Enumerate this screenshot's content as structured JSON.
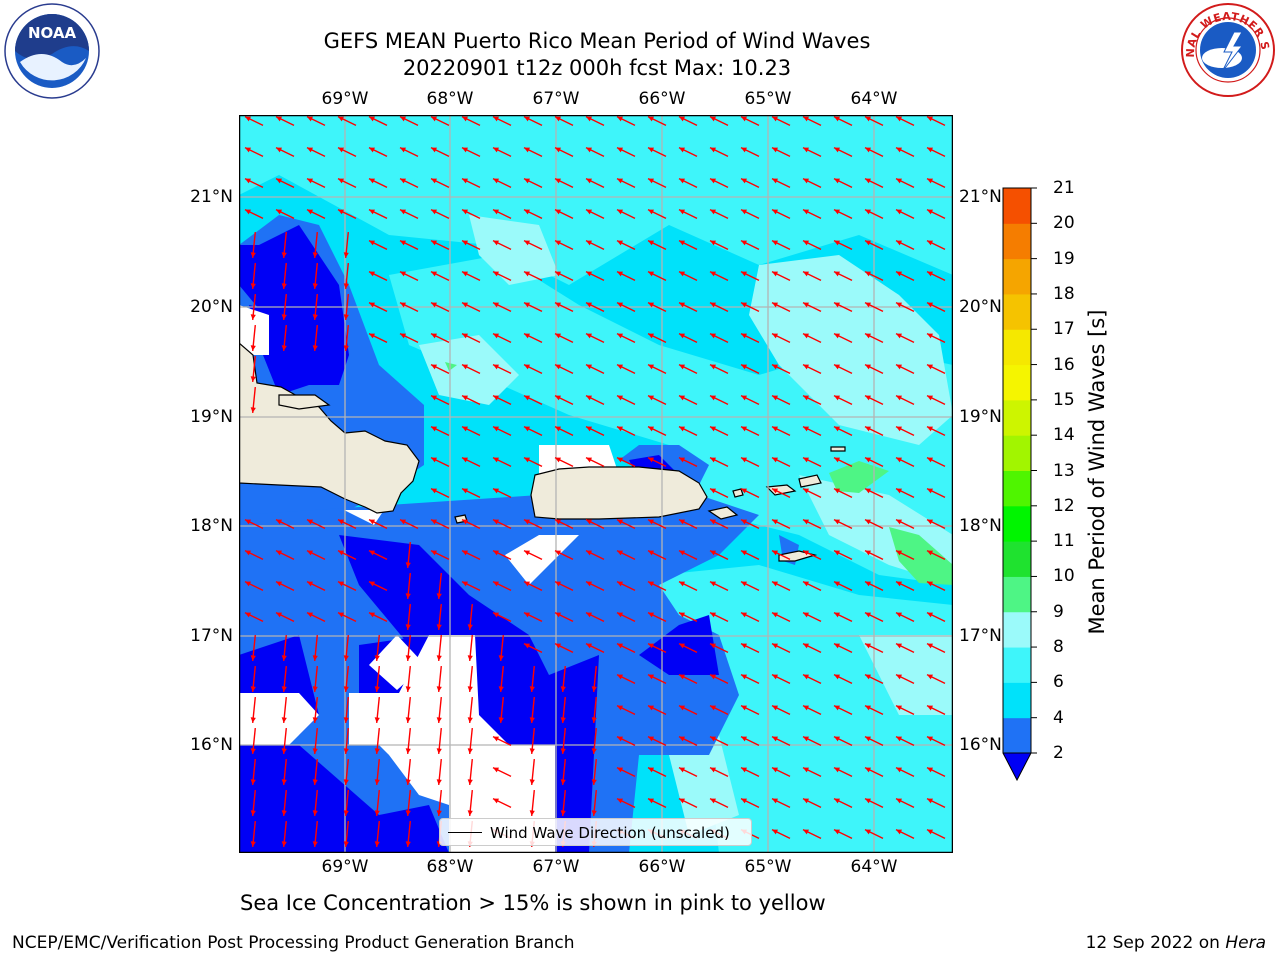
{
  "title": {
    "line1": "GEFS MEAN Puerto Rico Mean Period of Wind Waves",
    "line2": "20220901 t12z 000h fcst   Max: 10.23"
  },
  "map": {
    "lon_labels": [
      "69°W",
      "68°W",
      "67°W",
      "66°W",
      "65°W",
      "64°W"
    ],
    "lat_labels": [
      "21°N",
      "20°N",
      "19°N",
      "18°N",
      "17°N",
      "16°N"
    ],
    "legend_label": "Wind Wave Direction (unscaled)",
    "colors": {
      "land": "#efebdb",
      "missing": "#ffffff",
      "arrow": "#ff0000",
      "grid": "#b4b4b4"
    }
  },
  "colorbar": {
    "title": "Mean Period of Wind Waves [s]",
    "tick_labels": [
      "2",
      "4",
      "6",
      "8",
      "9",
      "10",
      "11",
      "12",
      "13",
      "14",
      "15",
      "16",
      "17",
      "18",
      "19",
      "20",
      "21"
    ],
    "colors": [
      "#1f72f5",
      "#00e2fa",
      "#3ef5fa",
      "#9bfafa",
      "#4ef585",
      "#1fe22f",
      "#00f500",
      "#4ff500",
      "#a2f500",
      "#cdf500",
      "#f5f500",
      "#f5e800",
      "#f5c300",
      "#f5a500",
      "#f57d00",
      "#f55000",
      "#f52d00",
      "#f50000"
    ],
    "under_color": "#0000f5"
  },
  "bottom_note": "Sea Ice Concentration > 15% is shown in pink to yellow",
  "footer": {
    "left": "NCEP/EMC/Verification Post Processing Product Generation Branch",
    "right_prefix": "12 Sep 2022 on ",
    "right_host": "Hera"
  },
  "logos": {
    "noaa_text": "NOAA",
    "nws_text": "NATIONAL WEATHER SERVICE"
  }
}
